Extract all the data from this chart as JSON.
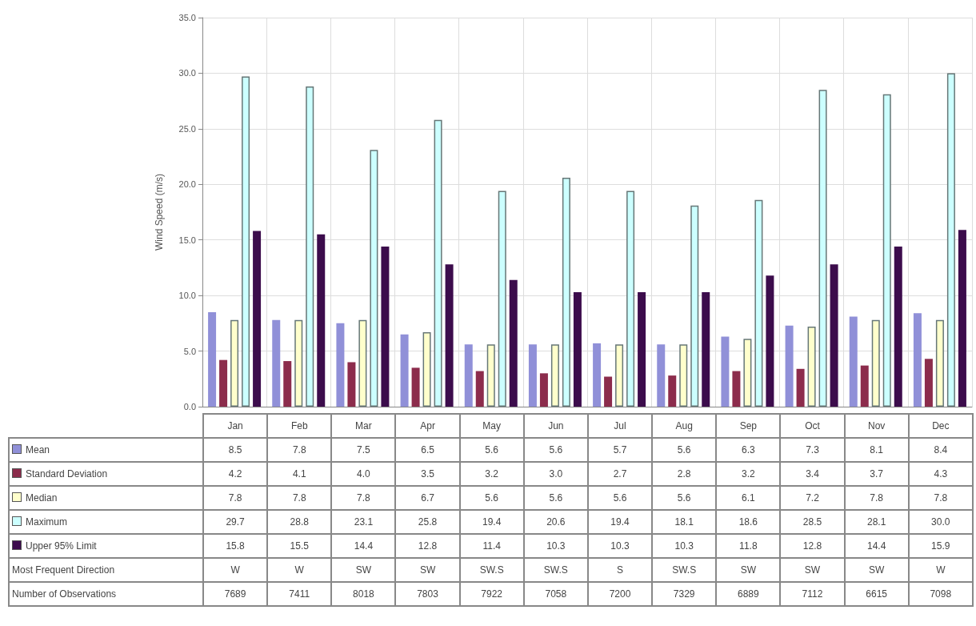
{
  "chart_data": {
    "type": "bar",
    "ylabel": "Wind Speed (m/s)",
    "categories": [
      "Jan",
      "Feb",
      "Mar",
      "Apr",
      "May",
      "Jun",
      "Jul",
      "Aug",
      "Sep",
      "Oct",
      "Nov",
      "Dec"
    ],
    "series": [
      {
        "name": "Mean",
        "color": "#9090d8",
        "values": [
          8.5,
          7.8,
          7.5,
          6.5,
          5.6,
          5.6,
          5.7,
          5.6,
          6.3,
          7.3,
          8.1,
          8.4
        ],
        "value_labels": [
          "8.5",
          "7.8",
          "7.5",
          "6.5",
          "5.6",
          "5.6",
          "5.7",
          "5.6",
          "6.3",
          "7.3",
          "8.1",
          "8.4"
        ]
      },
      {
        "name": "Standard Deviation",
        "color": "#8c2c4c",
        "values": [
          4.2,
          4.1,
          4.0,
          3.5,
          3.2,
          3.0,
          2.7,
          2.8,
          3.2,
          3.4,
          3.7,
          4.3
        ],
        "value_labels": [
          "4.2",
          "4.1",
          "4.0",
          "3.5",
          "3.2",
          "3.0",
          "2.7",
          "2.8",
          "3.2",
          "3.4",
          "3.7",
          "4.3"
        ]
      },
      {
        "name": "Median",
        "color": "#ffffcc",
        "values": [
          7.8,
          7.8,
          7.8,
          6.7,
          5.6,
          5.6,
          5.6,
          5.6,
          6.1,
          7.2,
          7.8,
          7.8
        ],
        "value_labels": [
          "7.8",
          "7.8",
          "7.8",
          "6.7",
          "5.6",
          "5.6",
          "5.6",
          "5.6",
          "6.1",
          "7.2",
          "7.8",
          "7.8"
        ]
      },
      {
        "name": "Maximum",
        "color": "#ccffff",
        "values": [
          29.7,
          28.8,
          23.1,
          25.8,
          19.4,
          20.6,
          19.4,
          18.1,
          18.6,
          28.5,
          28.1,
          30.0
        ],
        "value_labels": [
          "29.7",
          "28.8",
          "23.1",
          "25.8",
          "19.4",
          "20.6",
          "19.4",
          "18.1",
          "18.6",
          "28.5",
          "28.1",
          "30.0"
        ]
      },
      {
        "name": "Upper 95% Limit",
        "color": "#3c0c4c",
        "values": [
          15.8,
          15.5,
          14.4,
          12.8,
          11.4,
          10.3,
          10.3,
          10.3,
          11.8,
          12.8,
          14.4,
          15.9
        ],
        "value_labels": [
          "15.8",
          "15.5",
          "14.4",
          "12.8",
          "11.4",
          "10.3",
          "10.3",
          "10.3",
          "11.8",
          "12.8",
          "14.4",
          "15.9"
        ]
      }
    ],
    "ylim": [
      0,
      35
    ],
    "yticks": [
      {
        "value": 0,
        "label": "0.0"
      },
      {
        "value": 5,
        "label": "5.0"
      },
      {
        "value": 10,
        "label": "10.0"
      },
      {
        "value": 15,
        "label": "15.0"
      },
      {
        "value": 20,
        "label": "20.0"
      },
      {
        "value": 25,
        "label": "25.0"
      },
      {
        "value": 30,
        "label": "30.0"
      },
      {
        "value": 35,
        "label": "35.0"
      }
    ],
    "grid": true,
    "legend": "bottom",
    "annotations": [
      "Most Frequent Direction",
      "W",
      "W",
      "SW",
      "SW",
      "SW.S",
      "SW.S",
      "S",
      "SW.S",
      "SW",
      "SW",
      "SW",
      "W",
      "Number of Observations",
      "7689",
      "7411",
      "8018",
      "7803",
      "7922",
      "7058",
      "7200",
      "7329",
      "6889",
      "7112",
      "6615",
      "7098"
    ]
  }
}
